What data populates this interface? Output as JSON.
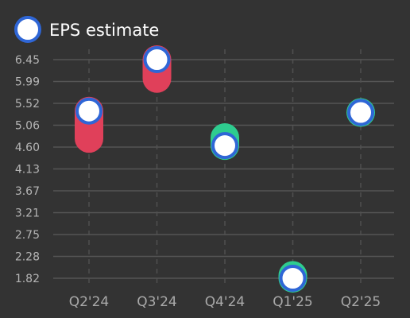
{
  "chart_data": {
    "type": "scatter",
    "categories": [
      "Q2'24",
      "Q3'24",
      "Q4'24",
      "Q1'25",
      "Q2'25"
    ],
    "y_ticks": [
      "1.82",
      "2.28",
      "2.75",
      "3.21",
      "3.67",
      "4.13",
      "4.60",
      "5.06",
      "5.52",
      "5.99",
      "6.45"
    ],
    "ylim": [
      1.82,
      6.45
    ],
    "grid": true,
    "legend_position": "top-left",
    "legend": [
      {
        "label": "EPS estimate"
      }
    ],
    "series": [
      {
        "name": "EPS estimate",
        "values": [
          5.36,
          6.45,
          4.63,
          1.82,
          5.33
        ]
      },
      {
        "values": [
          4.78,
          6.05,
          4.8,
          1.88,
          5.33
        ]
      }
    ],
    "colors": {
      "estimate_fill": "#ffffff",
      "estimate_stroke": "#2f66d6",
      "beat": "#2ecc8f",
      "miss": "#e0405a",
      "grid": "#555555"
    }
  }
}
